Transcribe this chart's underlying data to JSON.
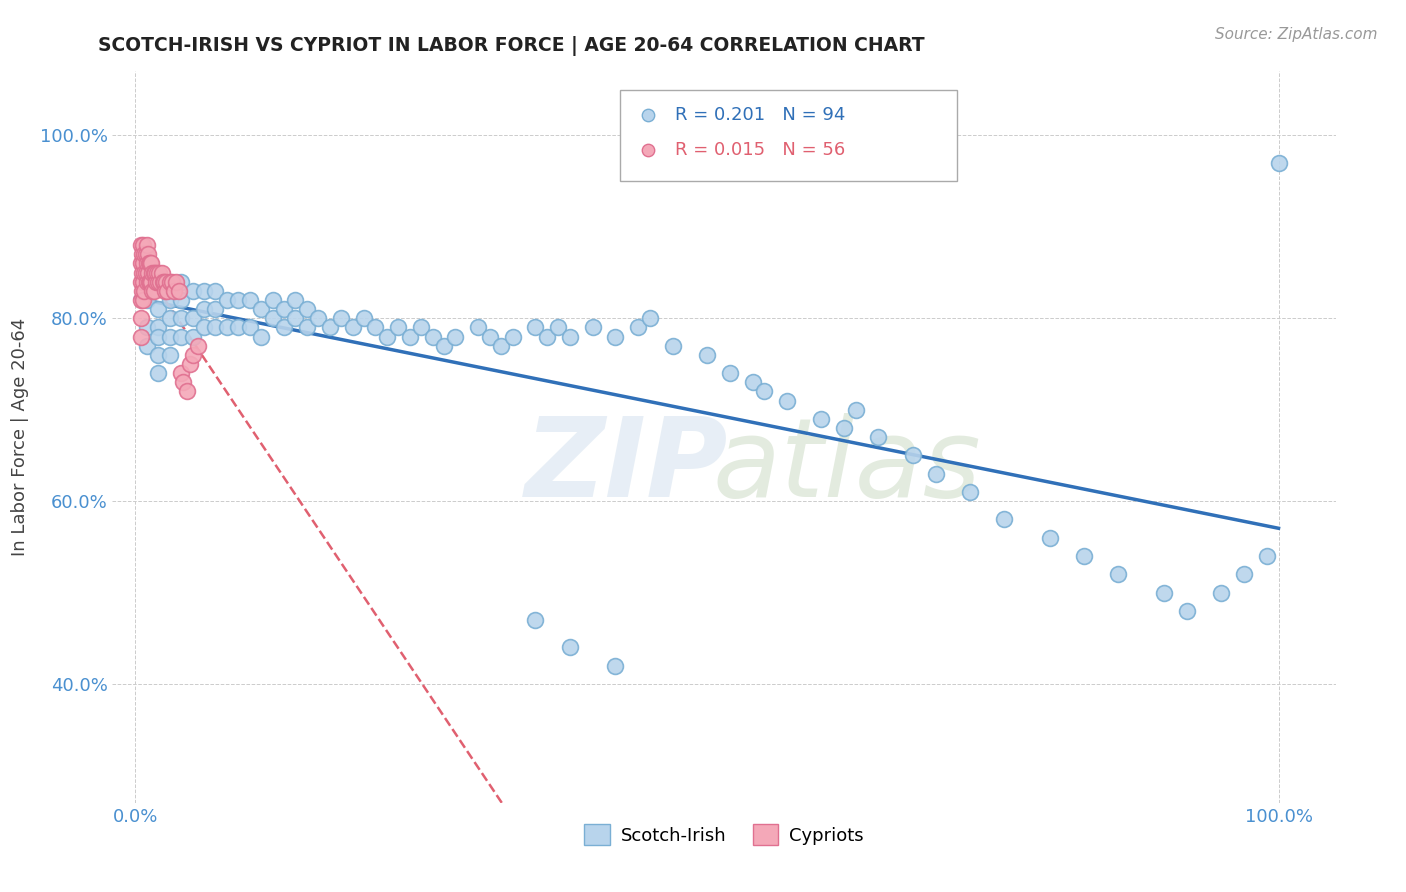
{
  "title": "SCOTCH-IRISH VS CYPRIOT IN LABOR FORCE | AGE 20-64 CORRELATION CHART",
  "source_text": "Source: ZipAtlas.com",
  "ylabel": "In Labor Force | Age 20-64",
  "xlim": [
    -0.02,
    1.05
  ],
  "ylim": [
    0.27,
    1.07
  ],
  "x_ticks": [
    0.0,
    1.0
  ],
  "x_tick_labels": [
    "0.0%",
    "100.0%"
  ],
  "y_ticks": [
    0.4,
    0.6,
    0.8,
    1.0
  ],
  "y_tick_labels": [
    "40.0%",
    "60.0%",
    "80.0%",
    "100.0%"
  ],
  "legend_labels": [
    "Scotch-Irish",
    "Cypriots"
  ],
  "scotch_irish_color": "#b8d4ec",
  "cypriot_color": "#f4a8b8",
  "scotch_irish_edge": "#7aafd4",
  "cypriot_edge": "#e07090",
  "trendline_scotch_color": "#3070b8",
  "trendline_cypriot_color": "#e06070",
  "R_scotch": 0.201,
  "N_scotch": 94,
  "R_cypriot": 0.015,
  "N_cypriot": 56,
  "background_color": "#ffffff",
  "grid_color": "#cccccc",
  "scotch_irish_x": [
    0.01,
    0.01,
    0.01,
    0.02,
    0.02,
    0.02,
    0.02,
    0.02,
    0.02,
    0.03,
    0.03,
    0.03,
    0.03,
    0.03,
    0.04,
    0.04,
    0.04,
    0.04,
    0.05,
    0.05,
    0.05,
    0.06,
    0.06,
    0.06,
    0.07,
    0.07,
    0.07,
    0.08,
    0.08,
    0.09,
    0.09,
    0.1,
    0.1,
    0.11,
    0.11,
    0.12,
    0.12,
    0.13,
    0.13,
    0.14,
    0.14,
    0.15,
    0.15,
    0.16,
    0.17,
    0.18,
    0.19,
    0.2,
    0.21,
    0.22,
    0.23,
    0.24,
    0.25,
    0.26,
    0.27,
    0.28,
    0.3,
    0.31,
    0.32,
    0.33,
    0.35,
    0.36,
    0.37,
    0.38,
    0.4,
    0.42,
    0.44,
    0.45,
    0.47,
    0.5,
    0.52,
    0.54,
    0.55,
    0.57,
    0.6,
    0.62,
    0.63,
    0.65,
    0.68,
    0.7,
    0.73,
    0.76,
    0.8,
    0.83,
    0.86,
    0.9,
    0.92,
    0.95,
    0.97,
    0.99,
    1.0,
    0.35,
    0.38,
    0.42
  ],
  "scotch_irish_y": [
    0.82,
    0.79,
    0.77,
    0.84,
    0.81,
    0.79,
    0.78,
    0.76,
    0.74,
    0.83,
    0.82,
    0.8,
    0.78,
    0.76,
    0.84,
    0.82,
    0.8,
    0.78,
    0.83,
    0.8,
    0.78,
    0.83,
    0.81,
    0.79,
    0.83,
    0.81,
    0.79,
    0.82,
    0.79,
    0.82,
    0.79,
    0.82,
    0.79,
    0.81,
    0.78,
    0.82,
    0.8,
    0.81,
    0.79,
    0.82,
    0.8,
    0.81,
    0.79,
    0.8,
    0.79,
    0.8,
    0.79,
    0.8,
    0.79,
    0.78,
    0.79,
    0.78,
    0.79,
    0.78,
    0.77,
    0.78,
    0.79,
    0.78,
    0.77,
    0.78,
    0.79,
    0.78,
    0.79,
    0.78,
    0.79,
    0.78,
    0.79,
    0.8,
    0.77,
    0.76,
    0.74,
    0.73,
    0.72,
    0.71,
    0.69,
    0.68,
    0.7,
    0.67,
    0.65,
    0.63,
    0.61,
    0.58,
    0.56,
    0.54,
    0.52,
    0.5,
    0.48,
    0.5,
    0.52,
    0.54,
    0.97,
    0.47,
    0.44,
    0.42
  ],
  "cypriot_x": [
    0.005,
    0.005,
    0.005,
    0.005,
    0.005,
    0.005,
    0.006,
    0.006,
    0.006,
    0.007,
    0.007,
    0.007,
    0.007,
    0.008,
    0.008,
    0.008,
    0.009,
    0.009,
    0.01,
    0.01,
    0.01,
    0.011,
    0.011,
    0.012,
    0.012,
    0.013,
    0.013,
    0.014,
    0.014,
    0.015,
    0.015,
    0.016,
    0.016,
    0.017,
    0.018,
    0.019,
    0.02,
    0.021,
    0.022,
    0.023,
    0.024,
    0.025,
    0.026,
    0.027,
    0.028,
    0.03,
    0.032,
    0.034,
    0.036,
    0.038,
    0.04,
    0.042,
    0.045,
    0.048,
    0.05,
    0.055
  ],
  "cypriot_y": [
    0.88,
    0.86,
    0.84,
    0.82,
    0.8,
    0.78,
    0.87,
    0.85,
    0.83,
    0.88,
    0.86,
    0.84,
    0.82,
    0.87,
    0.85,
    0.83,
    0.87,
    0.85,
    0.88,
    0.86,
    0.84,
    0.87,
    0.85,
    0.86,
    0.84,
    0.86,
    0.84,
    0.86,
    0.84,
    0.85,
    0.83,
    0.85,
    0.83,
    0.85,
    0.84,
    0.85,
    0.84,
    0.85,
    0.84,
    0.85,
    0.84,
    0.84,
    0.83,
    0.84,
    0.83,
    0.84,
    0.84,
    0.83,
    0.84,
    0.83,
    0.74,
    0.73,
    0.72,
    0.75,
    0.76,
    0.77
  ]
}
